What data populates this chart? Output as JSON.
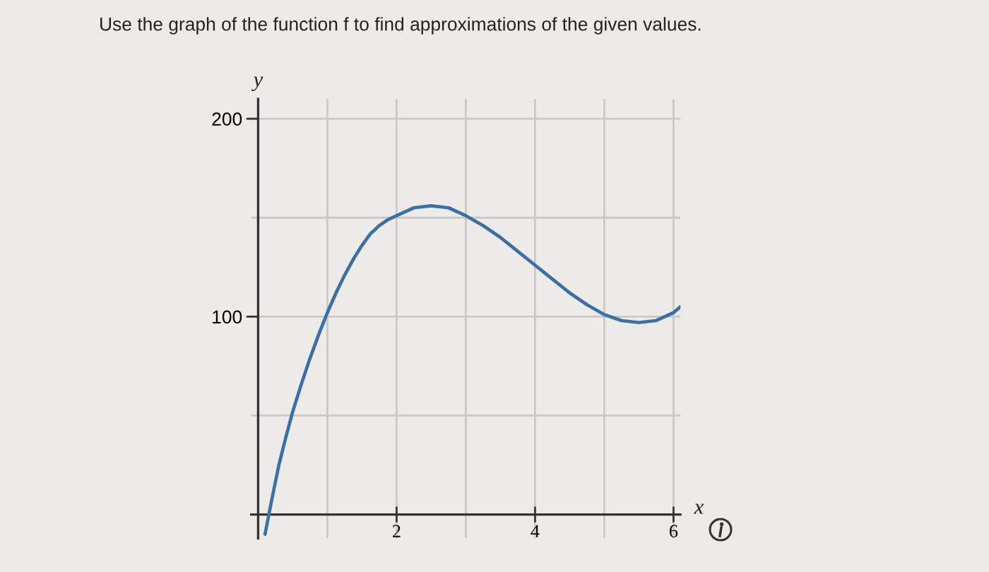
{
  "chart_data": {
    "type": "line",
    "title": "Use the graph of the function f to find approximations of the given values.",
    "xlabel": "x",
    "ylabel": "y",
    "series": [
      {
        "color": "#3b6fa6",
        "x": [
          0.1,
          0.2,
          0.3,
          0.4,
          0.5,
          0.625,
          0.75,
          0.875,
          1,
          1.125,
          1.25,
          1.375,
          1.5,
          1.625,
          1.75,
          1.875,
          2,
          2.25,
          2.5,
          2.75,
          3,
          3.25,
          3.5,
          3.75,
          4,
          4.25,
          4.5,
          4.75,
          5,
          5.25,
          5.5,
          5.75,
          6,
          6.1
        ],
        "values": [
          -10,
          8,
          25,
          39,
          52,
          66,
          79,
          91,
          102,
          112,
          121,
          129,
          136,
          142,
          146,
          149,
          151,
          155,
          156,
          155,
          151,
          146,
          140,
          133,
          126,
          119,
          112,
          106,
          101,
          98,
          97,
          98,
          102,
          105
        ]
      }
    ],
    "xlim": [
      -0.1,
      6.1
    ],
    "ylim": [
      -12,
      210
    ],
    "xticks": [
      {
        "value": 1,
        "label": null
      },
      2,
      {
        "value": 3,
        "label": null
      },
      4,
      {
        "value": 5,
        "label": null
      },
      6
    ],
    "yticks": [
      {
        "value": 50,
        "label": null
      },
      100,
      {
        "value": 150,
        "label": null
      },
      200
    ],
    "grid": true,
    "line_style": "solid"
  }
}
